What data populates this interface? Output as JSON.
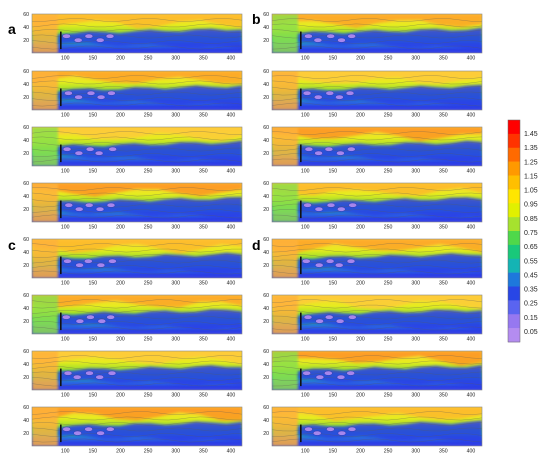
{
  "figure": {
    "panel_labels": [
      "a",
      "b",
      "c",
      "d"
    ],
    "y_ticks": [
      "60",
      "40",
      "20"
    ],
    "x_ticks": [
      "100",
      "150",
      "200",
      "250",
      "300",
      "350",
      "400"
    ]
  },
  "chart_data": {
    "type": "heatmap",
    "layout": "2 columns x 8 rows of contour maps, grouped into panels a, b (top) and c, d (bottom)",
    "x": {
      "ticks": [
        100,
        150,
        200,
        250,
        300,
        350,
        400
      ],
      "range": [
        40,
        420
      ]
    },
    "y": {
      "ticks": [
        20,
        40,
        60
      ],
      "range": [
        0,
        60
      ]
    },
    "colorbar": {
      "ticks": [
        "1.45",
        "1.35",
        "1.25",
        "1.15",
        "1.05",
        "0.95",
        "0.85",
        "0.75",
        "0.65",
        "0.55",
        "0.45",
        "0.35",
        "0.25",
        "0.15",
        "0.05"
      ],
      "range": [
        0.05,
        1.5
      ],
      "colors": [
        "#ff0000",
        "#ff3300",
        "#ff6a00",
        "#ff9900",
        "#ffbf00",
        "#ffe600",
        "#e1f000",
        "#a6e22e",
        "#4fd84a",
        "#19c87a",
        "#14b4b4",
        "#1e78dc",
        "#2846e6",
        "#5a64f0",
        "#9678f0",
        "#b48cf0"
      ]
    },
    "panels": [
      {
        "label": "a",
        "subplots": 4
      },
      {
        "label": "b",
        "subplots": 4
      },
      {
        "label": "c",
        "subplots": 4
      },
      {
        "label": "d",
        "subplots": 4
      }
    ]
  }
}
